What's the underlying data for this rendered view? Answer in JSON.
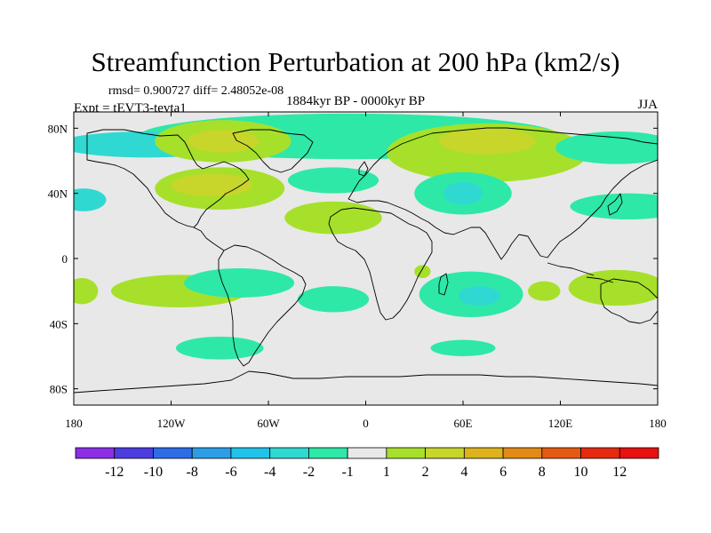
{
  "chart_data": {
    "type": "heatmap",
    "title": "Streamfunction Perturbation at 200 hPa (km2/s)",
    "stats_label": "rmsd= 0.900727 diff= 2.48052e-08",
    "period_label": "1884kyr BP - 0000kyr BP",
    "experiment_label": "Expt = tEVT3-tevta1",
    "season_label": "JJA",
    "x_axis": {
      "range": [
        -180,
        180
      ],
      "ticks": [
        -180,
        -120,
        -60,
        0,
        60,
        120,
        180
      ],
      "tick_labels": [
        "180",
        "120W",
        "60W",
        "0",
        "60E",
        "120E",
        "180"
      ]
    },
    "y_axis": {
      "range": [
        -90,
        90
      ],
      "ticks": [
        80,
        40,
        0,
        -40,
        -80
      ],
      "tick_labels": [
        "80N",
        "40N",
        "0",
        "40S",
        "80S"
      ]
    },
    "colorbar": {
      "levels": [
        "-12",
        "-10",
        "-8",
        "-6",
        "-4",
        "-2",
        "-1",
        "1",
        "2",
        "4",
        "6",
        "8",
        "10",
        "12"
      ],
      "colors": [
        "#8c2ee6",
        "#4b3de0",
        "#2d6ee6",
        "#2c9ee6",
        "#22c3e8",
        "#2fd9d2",
        "#2ee8a8",
        "#e8e8e8",
        "#a6e02a",
        "#c8d52a",
        "#ddb21c",
        "#e38a16",
        "#e55a12",
        "#e52a10",
        "#e81010"
      ]
    },
    "anomalies": [
      {
        "lon": -10,
        "lat": 75,
        "rlon": 130,
        "rlat": 14,
        "color": "#2ee8a8"
      },
      {
        "lon": -135,
        "lat": 70,
        "rlon": 55,
        "rlat": 8,
        "color": "#2fd9d2"
      },
      {
        "lon": -88,
        "lat": 72,
        "rlon": 42,
        "rlat": 13,
        "color": "#a6e02a"
      },
      {
        "lon": -88,
        "lat": 72,
        "rlon": 22,
        "rlat": 7,
        "color": "#c8d52a"
      },
      {
        "lon": -90,
        "lat": 43,
        "rlon": 40,
        "rlat": 13,
        "color": "#a6e02a"
      },
      {
        "lon": -95,
        "lat": 45,
        "rlon": 25,
        "rlat": 7,
        "color": "#c8d52a"
      },
      {
        "lon": -20,
        "lat": 48,
        "rlon": 28,
        "rlat": 8,
        "color": "#2ee8a8"
      },
      {
        "lon": -20,
        "lat": 25,
        "rlon": 30,
        "rlat": 10,
        "color": "#a6e02a"
      },
      {
        "lon": 75,
        "lat": 65,
        "rlon": 62,
        "rlat": 18,
        "color": "#a6e02a"
      },
      {
        "lon": 75,
        "lat": 72,
        "rlon": 30,
        "rlat": 8,
        "color": "#c8d52a"
      },
      {
        "lon": 60,
        "lat": 40,
        "rlon": 30,
        "rlat": 13,
        "color": "#2ee8a8"
      },
      {
        "lon": 60,
        "lat": 40,
        "rlon": 12,
        "rlat": 7,
        "color": "#2fd9d2"
      },
      {
        "lon": 155,
        "lat": 68,
        "rlon": 38,
        "rlat": 10,
        "color": "#2ee8a8"
      },
      {
        "lon": 162,
        "lat": 32,
        "rlon": 36,
        "rlat": 8,
        "color": "#2ee8a8"
      },
      {
        "lon": -174,
        "lat": 36,
        "rlon": 14,
        "rlat": 7,
        "color": "#2fd9d2"
      },
      {
        "lon": -115,
        "lat": -20,
        "rlon": 42,
        "rlat": 10,
        "color": "#a6e02a"
      },
      {
        "lon": -78,
        "lat": -15,
        "rlon": 34,
        "rlat": 9,
        "color": "#2ee8a8"
      },
      {
        "lon": -20,
        "lat": -25,
        "rlon": 22,
        "rlat": 8,
        "color": "#2ee8a8"
      },
      {
        "lon": -175,
        "lat": -20,
        "rlon": 10,
        "rlat": 8,
        "color": "#a6e02a"
      },
      {
        "lon": -90,
        "lat": -55,
        "rlon": 27,
        "rlat": 7,
        "color": "#2ee8a8"
      },
      {
        "lon": 65,
        "lat": -22,
        "rlon": 32,
        "rlat": 14,
        "color": "#2ee8a8"
      },
      {
        "lon": 70,
        "lat": -23,
        "rlon": 13,
        "rlat": 6,
        "color": "#2fd9d2"
      },
      {
        "lon": 35,
        "lat": -8,
        "rlon": 5,
        "rlat": 4,
        "color": "#a6e02a"
      },
      {
        "lon": 110,
        "lat": -20,
        "rlon": 10,
        "rlat": 6,
        "color": "#a6e02a"
      },
      {
        "lon": 155,
        "lat": -18,
        "rlon": 30,
        "rlat": 11,
        "color": "#a6e02a"
      },
      {
        "lon": 60,
        "lat": -55,
        "rlon": 20,
        "rlat": 5,
        "color": "#2ee8a8"
      }
    ]
  }
}
